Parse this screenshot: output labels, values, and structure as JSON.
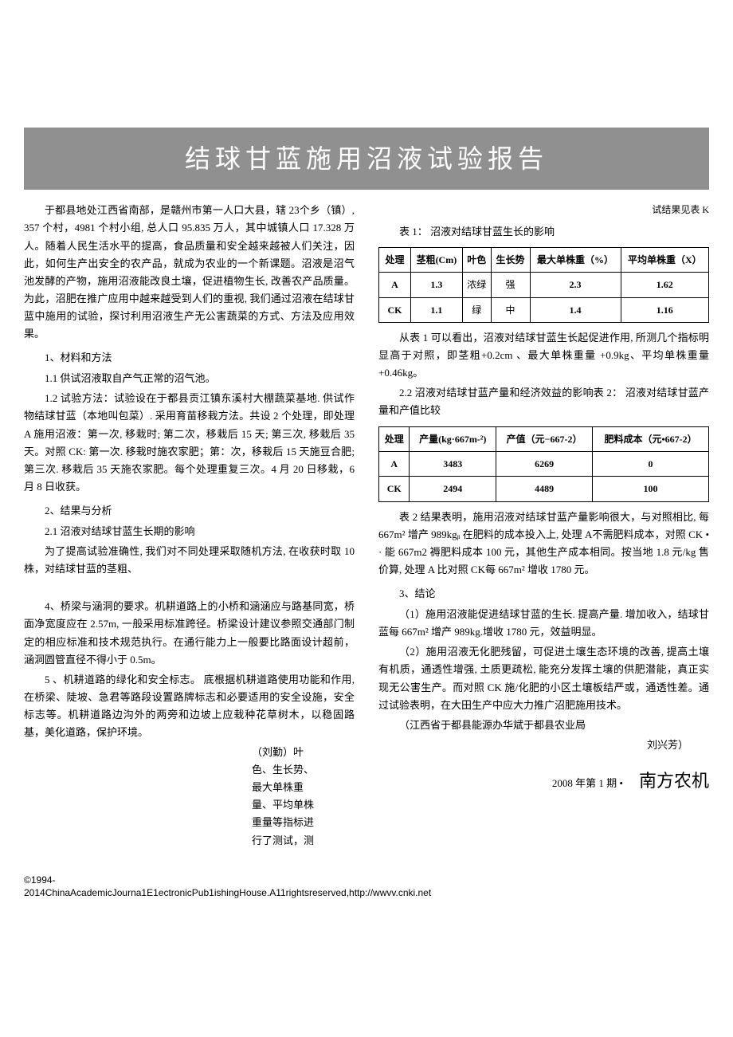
{
  "title": "结球甘蓝施用沼液试验报告",
  "left": {
    "intro": "于都县地处江西省南部，是赣州市第一人口大县，辖 23个乡（镇）, 357 个村，4981 个村小组, 总人口 95.835 万人，其中城镇人口 17.328 万人。随着人民生活水平的提高，食品质量和安全越来越被人们关注，因此，如何生产出安全的农产品，就成为农业的一个新课题。沼液是沼气池发酵的产物，施用沼液能改良土壤，促进植物生长, 改善农产品质量。为此，沼肥在推广应用中越来越受到人们的重视, 我们通过沼液在结球甘蓝中施用的试验，探讨利用沼液生产无公害蔬菜的方式、方法及应用效果。",
    "s1h": "1、材料和方法",
    "s11": "1.1 供试沼液取自产气正常的沼气池。",
    "s12": "1.2 试验方法：试验设在于都县贡江镇东溪村大棚蔬菜基地. 供试作物结球甘蓝（本地叫包菜）. 采用育苗移栽方法。共设 2 个处理，即处理 A 施用沼液：第一次, 移栽时; 第二次，移栽后 15 天; 第三次, 移栽后 35 天。对照 CK: 第一次. 移栽时施农家肥；第：次，移栽后 15 天施豆合肥; 第三次. 移栽后 35 天施农家肥。每个处理重复三次。4 月 20 日移栽，6 月 8 日收获。",
    "s2h": "2、结果与分析",
    "s21h": "2.1 沼液对结球甘蓝生长期的影响",
    "s21p": "为了提高试验准确性, 我们对不同处理采取随机方法, 在收获时取 10 株，对结球甘蓝的茎粗、",
    "s4": "4、桥梁与涵洞的要求。机耕道路上的小桥和涵涵应与路基同宽，桥面净宽度应在 2.57m, 一般采用标准跨径。桥梁设计建议参照交通部门制定的相应标准和技术规范执行。在通行能力上一般要比路面设计超前，涵洞圆管直径不得小于 0.5m。",
    "s5": "5 、机耕道路的绿化和安全标志。 底根据机耕道路使用功能和作用, 在桥梁、陡坡、急君等路段设置路牌标志和必要适用的安全设施，安全标志等。机耕道路边沟外的两旁和边坡上应栽种花草树木，以稳固路基，美化道路，保护环境。",
    "byline_author": "（刘勤）叶",
    "byline_lines": [
      "色、生长势、",
      "最大单株重",
      "量、平均单株",
      "重量等指标进",
      "行了测试，测"
    ]
  },
  "right": {
    "top_note": "试结果见表 K",
    "t1_caption": "表 1：  沼液对结球甘蓝生长的影响",
    "t1": {
      "headers": [
        "处理",
        "茎粗(Cm)",
        "叶色",
        "生长势",
        "最大单株重（%）",
        "平均单株重（X）"
      ],
      "rows": [
        [
          "A",
          "1.3",
          "浓绿",
          "强",
          "2.3",
          "1.62"
        ],
        [
          "CK",
          "1.1",
          "绿",
          "中",
          "1.4",
          "1.16"
        ]
      ]
    },
    "t1_analysis": "从表 1 可以看出，沼液对结球甘蓝生长起促进作用, 所测几个指标明显高于对照，即茎粗+0.2cm 、最大单株重量 +0.9kg、平均单株重量+0.46kg。",
    "s22h": "2.2 沼液对结球甘蓝产量和经济效益的影响表 2： 沼液对结球甘蓝产量和产值比较",
    "t2": {
      "headers": [
        "处理",
        "产量(kg·667m-²)",
        "产值（元−667-2）",
        "肥料成本（元•667-2）"
      ],
      "rows": [
        [
          "A",
          "3483",
          "6269",
          "0"
        ],
        [
          "CK",
          "2494",
          "4489",
          "100"
        ]
      ]
    },
    "t2_analysis": "表 2 结果表明，施用沼液对结球甘蓝产量影响很大，与对照相比, 每 667m² 增产 989kgᵦ 在肥料的成本投入上, 处理 A不需肥料成本，对照 CK • · 能 667m2 褥肥料成本 100 元，其他生产成本相同。按当地 1.8 元/kg 售价算, 处理 A 比对照 CK每 667m² 增收 1780 元。",
    "s3h": "3、结论",
    "c1": "（1）施用沼液能促进结球甘蓝的生长. 提高产量. 增加收入，结球甘蓝每 667m² 增产 989kg.增收 1780 元，效益明显。",
    "c2": "（2）施用沼液无化肥残留，可促进土壤生态环境的改善, 提高土壤有机质，通透性增强, 土质更疏松, 能充分发挥土壤的供肥潜能，真正实现无公害生产。而对照 CK 施/化肥的小区土壤板结严或，通透性差。通过试验表明，在大田生产中应大力推广沼肥施用技术。",
    "affil": "（江西省于都县能源办华斌于都县农业局",
    "author2": "刘兴芳）"
  },
  "footer": {
    "issue": "2008 年第 1 期 •",
    "journal": "南方农机"
  },
  "copyright": {
    "l1": "©1994-",
    "l2": "2014ChinaAcademicJourna1E1ectronicPub1ishingHouse.A11rightsreserved,http://wwvv.cnki.net"
  }
}
